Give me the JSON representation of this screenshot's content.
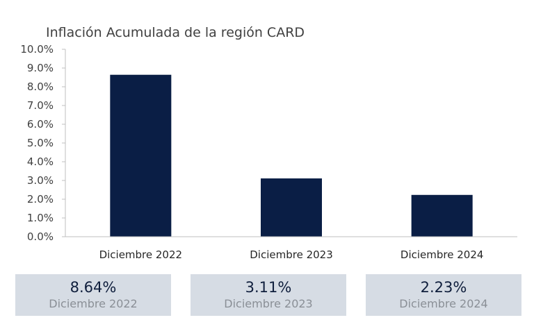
{
  "chart_data": {
    "type": "bar",
    "title": "Inflación Acumulada de la región CARD",
    "categories": [
      "Diciembre 2022",
      "Diciembre 2023",
      "Diciembre 2024"
    ],
    "values": [
      8.64,
      3.11,
      2.23
    ],
    "y_ticks": [
      "0.0%",
      "1.0%",
      "2.0%",
      "3.0%",
      "4.0%",
      "5.0%",
      "6.0%",
      "7.0%",
      "8.0%",
      "9.0%",
      "10.0%"
    ],
    "ylim": [
      0,
      10
    ],
    "grid": false,
    "bar_color": "#0a1e45"
  },
  "cards": [
    {
      "value": "8.64%",
      "label": "Diciembre 2022"
    },
    {
      "value": "3.11%",
      "label": "Diciembre 2023"
    },
    {
      "value": "2.23%",
      "label": "Diciembre 2024"
    }
  ]
}
